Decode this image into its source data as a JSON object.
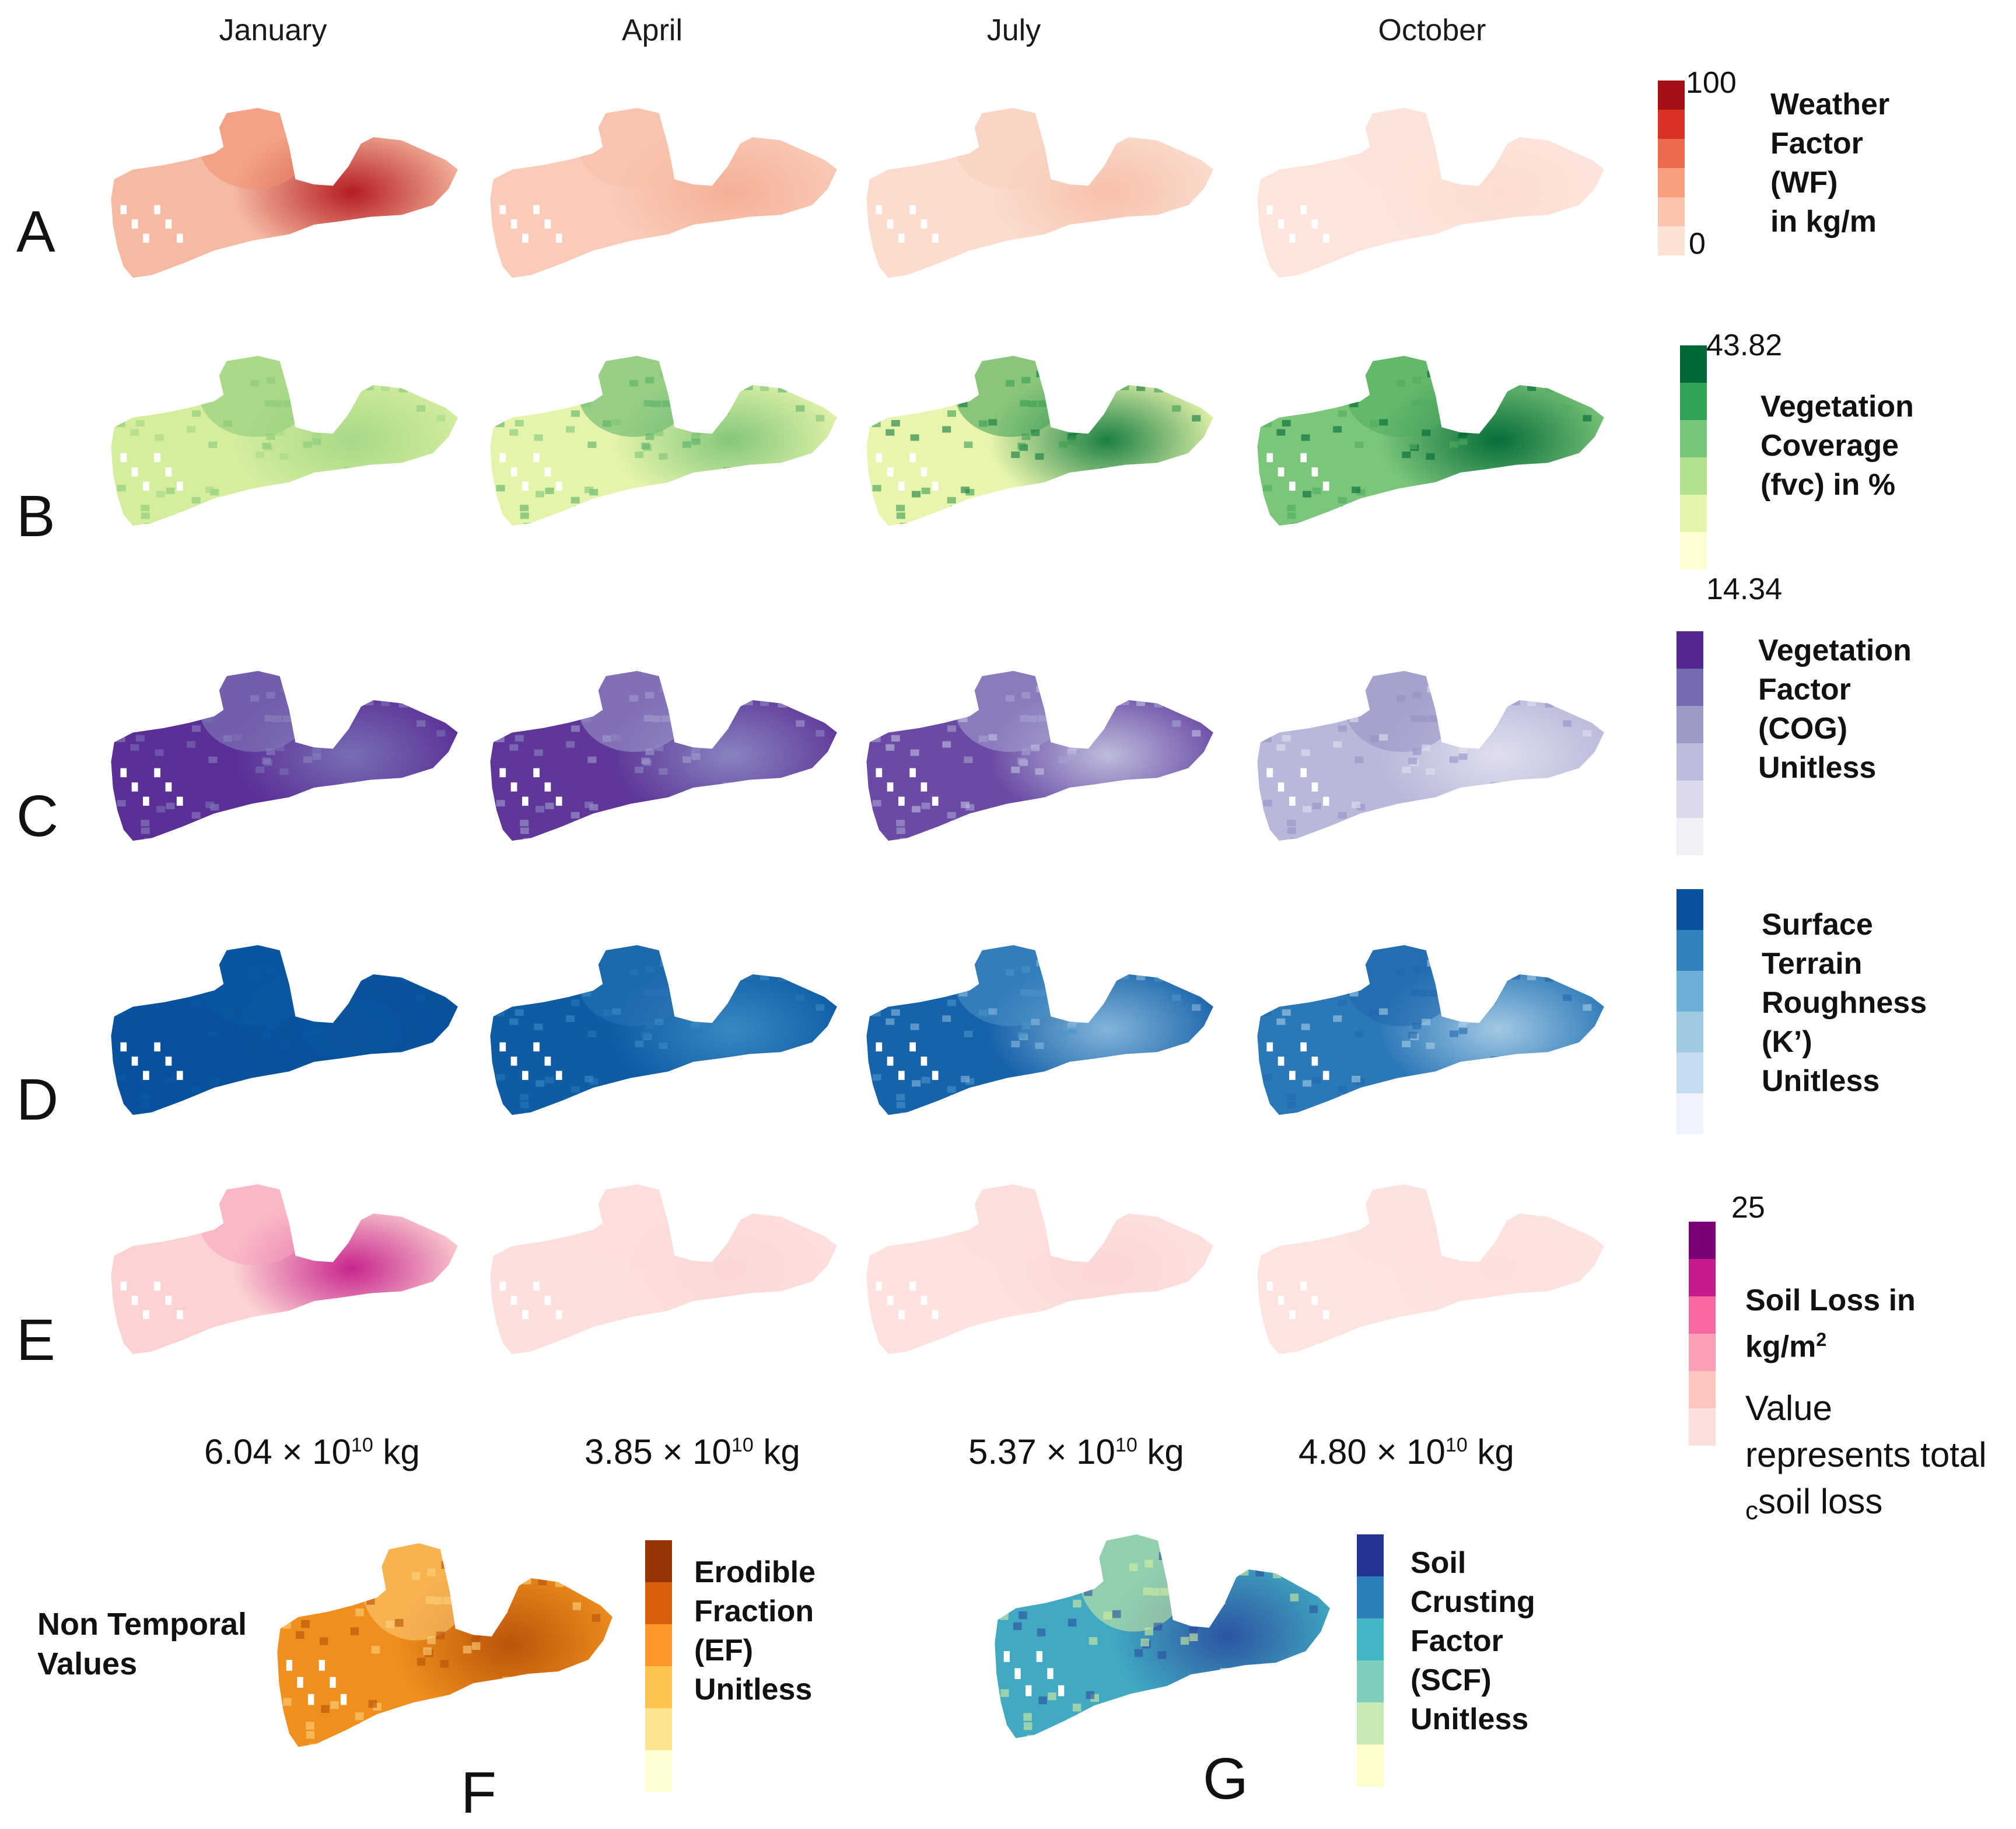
{
  "columns": [
    "January",
    "April",
    "July",
    "October"
  ],
  "rows": [
    {
      "label": "A",
      "palette": [
        "#fbe1d6",
        "#fbc4ad",
        "#f79e7e",
        "#ef6a4c",
        "#d83128",
        "#a50f15"
      ],
      "maps": [
        {
          "base": "#f6b9a1",
          "hot": "#b2141a",
          "spot": "#f09072"
        },
        {
          "base": "#f9cbb8",
          "hot": "#f5ae94",
          "spot": "#f8c0a8"
        },
        {
          "base": "#fbdccf",
          "hot": "#f7bfa8",
          "spot": "#f9cfbd"
        },
        {
          "base": "#fde5dc",
          "hot": "#fcdcd0",
          "spot": "#fde3d9"
        }
      ]
    },
    {
      "label": "B",
      "palette": [
        "#fefed2",
        "#e4f4a8",
        "#b3e08f",
        "#78c679",
        "#31a354",
        "#006837"
      ],
      "maps": [
        {
          "base": "#d4ee9e",
          "hot": "#a6d787",
          "spot": "#88c978"
        },
        {
          "base": "#e5f4ab",
          "hot": "#7fc57a",
          "spot": "#5ab067"
        },
        {
          "base": "#e9f5ae",
          "hot": "#0f7a3d",
          "spot": "#3a9e52"
        },
        {
          "base": "#7cc67a",
          "hot": "#006837",
          "spot": "#4fad5d"
        }
      ]
    },
    {
      "label": "C",
      "palette": [
        "#f2f0f7",
        "#dadaeb",
        "#bcbddc",
        "#9e9ac8",
        "#756bb1",
        "#54278f"
      ],
      "maps": [
        {
          "base": "#5a2f96",
          "hot": "#7a71b6",
          "spot": "#8a83c0"
        },
        {
          "base": "#5e3799",
          "hot": "#8c87c2",
          "spot": "#a29fcd"
        },
        {
          "base": "#6a4aa5",
          "hot": "#c2c2df",
          "spot": "#a7a4d0"
        },
        {
          "base": "#b8b8da",
          "hot": "#e1e1ef",
          "spot": "#9591c4"
        }
      ]
    },
    {
      "label": "D",
      "palette": [
        "#eff3ff",
        "#c6dbef",
        "#9ecae1",
        "#6baed6",
        "#3182bd",
        "#08519c"
      ],
      "maps": [
        {
          "base": "#08519c",
          "hot": "#0a559f",
          "spot": "#0c5aa3"
        },
        {
          "base": "#0f5ca5",
          "hot": "#3c8ac3",
          "spot": "#2a74b5"
        },
        {
          "base": "#1763aa",
          "hot": "#8ab9dc",
          "spot": "#4b94c9"
        },
        {
          "base": "#2b78b8",
          "hot": "#a9cde6",
          "spot": "#1f68ad"
        }
      ]
    },
    {
      "label": "E",
      "palette": [
        "#fde0dd",
        "#fcc5c0",
        "#fa9fb5",
        "#f768a1",
        "#c51b8a",
        "#7a0177"
      ],
      "maps": [
        {
          "base": "#fcd3d2",
          "hot": "#c51b8a",
          "spot": "#f7a2bd"
        },
        {
          "base": "#fde0dd",
          "hot": "#fcd6d4",
          "spot": "#fddcda"
        },
        {
          "base": "#fde2df",
          "hot": "#fcd4d3",
          "spot": "#fddedb"
        },
        {
          "base": "#fde4e1",
          "hot": "#fde0dd",
          "spot": "#fde2df"
        }
      ]
    }
  ],
  "legends": {
    "A": {
      "title": [
        "Weather",
        "Factor",
        "(WF)",
        "in kg/m"
      ],
      "max": "100",
      "min": "0"
    },
    "B": {
      "title": [
        "Vegetation",
        "Coverage",
        "(fvc) in %"
      ],
      "max": "43.82",
      "min": "14.34"
    },
    "C": {
      "title": [
        "Vegetation",
        "Factor",
        "(COG)",
        "Unitless"
      ]
    },
    "D": {
      "title": [
        "Surface",
        "Terrain",
        "Roughness",
        "(K’)",
        "Unitless"
      ]
    },
    "E": {
      "title": [
        "Soil Loss in",
        "kg/m"
      ],
      "title_sup": "2",
      "max": "25",
      "note": [
        "Value",
        "represents total",
        "soil loss"
      ],
      "note_stray": "c"
    }
  },
  "totals": [
    {
      "mantissa": "6.04 × 10",
      "exponent": "10",
      "unit": " kg"
    },
    {
      "mantissa": "3.85 × 10",
      "exponent": "10",
      "unit": " kg"
    },
    {
      "mantissa": "5.37 × 10",
      "exponent": "10",
      "unit": " kg"
    },
    {
      "mantissa": "4.80 × 10",
      "exponent": "10",
      "unit": " kg"
    }
  ],
  "non_temporal": {
    "label": [
      "Non Temporal",
      "Values"
    ],
    "F": {
      "letter": "F",
      "title": [
        "Erodible",
        "Fraction",
        "(EF)",
        "Unitless"
      ],
      "palette": [
        "#ffffd4",
        "#fee391",
        "#fec44f",
        "#fe9929",
        "#d95f0e",
        "#993404"
      ],
      "map": {
        "base": "#ef8f1e",
        "hot": "#b95008",
        "spot": "#fdd27a"
      }
    },
    "G": {
      "letter": "G",
      "title": [
        "Soil",
        "Crusting",
        "Factor",
        "(SCF)",
        "Unitless"
      ],
      "palette": [
        "#ffffcc",
        "#c7e9b4",
        "#7fcdbb",
        "#41b6c4",
        "#2c7fb8",
        "#253494"
      ],
      "map": {
        "base": "#41a9c2",
        "hot": "#2b4fa0",
        "spot": "#d4ee9e"
      }
    }
  }
}
